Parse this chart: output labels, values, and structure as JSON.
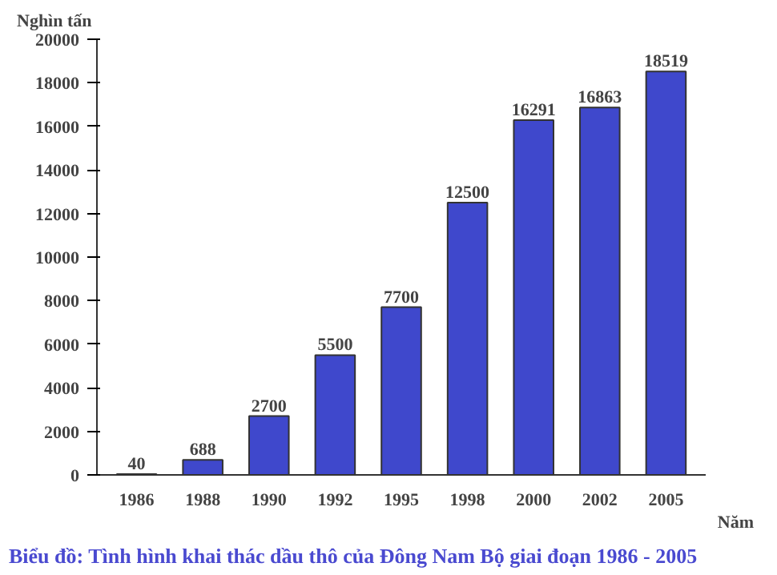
{
  "chart_data": {
    "type": "bar",
    "title": "Biểu đồ: Tình hình khai thác dầu thô của Đông Nam Bộ giai đoạn 1986 - 2005",
    "ylabel": "Nghìn tấn",
    "xlabel": "Năm",
    "categories": [
      "1986",
      "1988",
      "1990",
      "1992",
      "1995",
      "1998",
      "2000",
      "2002",
      "2005"
    ],
    "values": [
      40,
      688,
      2700,
      5500,
      7700,
      12500,
      16291,
      16863,
      18519
    ],
    "color": "#3f48cc",
    "data_labels": true,
    "grid": false,
    "ylim": [
      0,
      20000
    ],
    "yticks": [
      0,
      2000,
      4000,
      6000,
      8000,
      10000,
      12000,
      14000,
      16000,
      18000,
      20000
    ]
  }
}
